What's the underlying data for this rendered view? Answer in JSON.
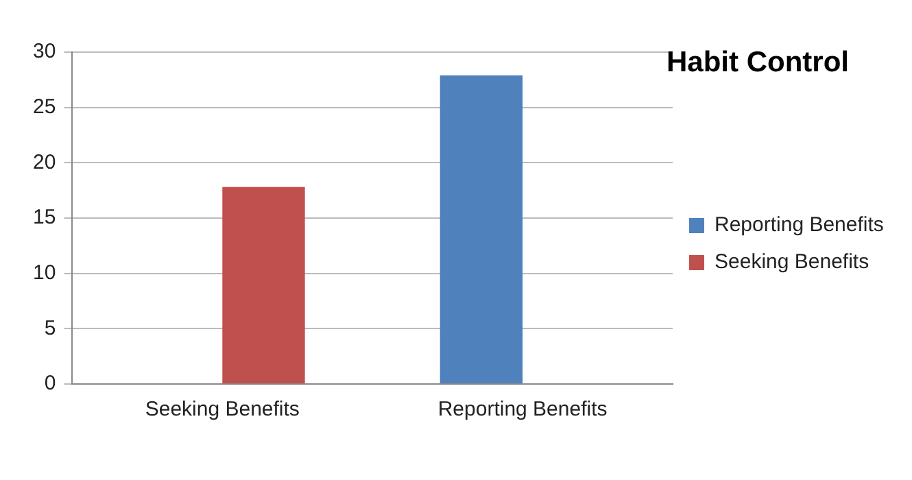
{
  "chart_data": {
    "type": "bar",
    "title": "Habit Control",
    "categories": [
      "Seeking Benefits",
      "Reporting Benefits"
    ],
    "series": [
      {
        "name": "Reporting Benefits",
        "color": "#4f81bd",
        "values": [
          null,
          27.9
        ]
      },
      {
        "name": "Seeking Benefits",
        "color": "#c0504d",
        "values": [
          17.8,
          null
        ]
      }
    ],
    "ylim": [
      0,
      30
    ],
    "yticks": [
      0,
      5,
      10,
      15,
      20,
      25,
      30
    ],
    "grid": "y",
    "legend": "right"
  }
}
